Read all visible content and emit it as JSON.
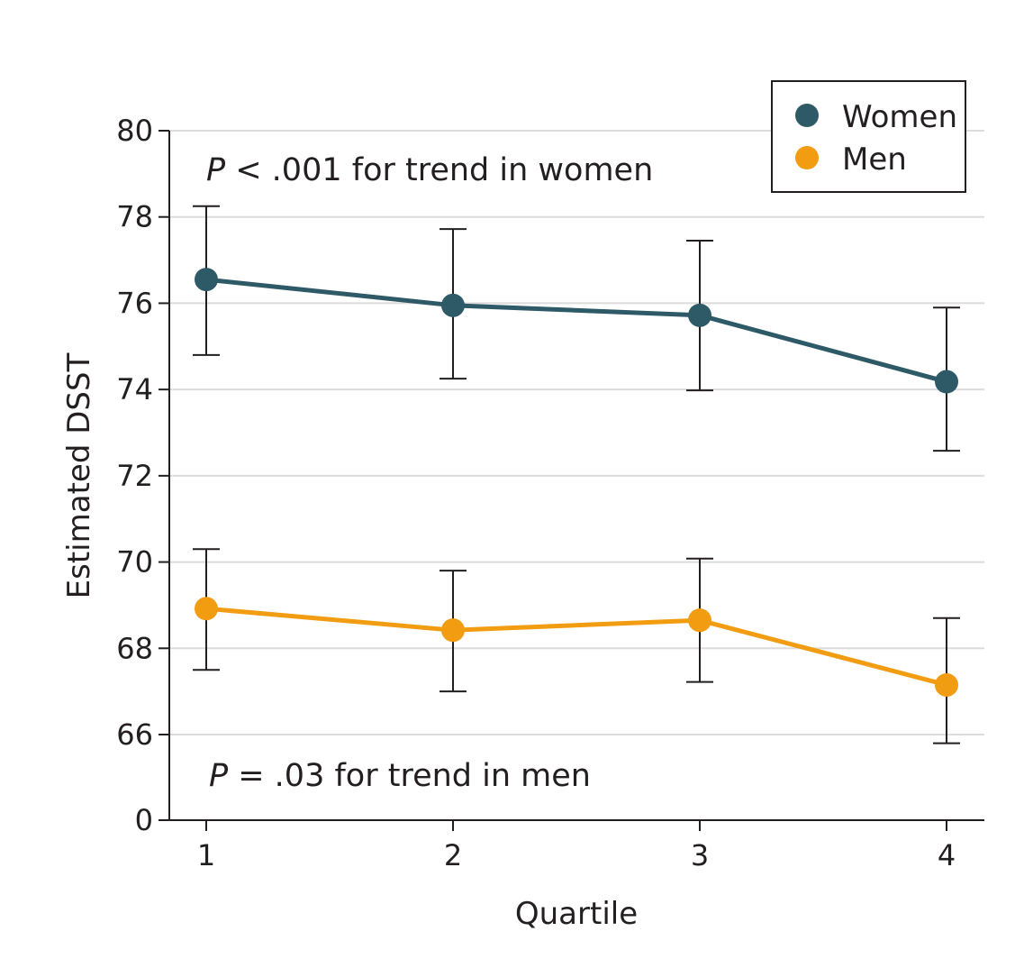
{
  "chart_data": {
    "type": "line",
    "xlabel": "Quartile",
    "ylabel": "Estimated DSST",
    "categories": [
      "1",
      "2",
      "3",
      "4"
    ],
    "x": [
      1,
      2,
      3,
      4
    ],
    "xlim": [
      0.85,
      4.15
    ],
    "y_ticks": [
      0,
      66,
      68,
      70,
      72,
      74,
      76,
      78,
      80
    ],
    "y_axis_break": "0 to 65",
    "grid": "horizontal",
    "legend_position": "top-right",
    "series": [
      {
        "name": "Women",
        "color": "#2e5a67",
        "values": [
          76.55,
          75.95,
          75.72,
          74.18
        ],
        "ci_low": [
          74.8,
          74.25,
          73.98,
          72.58
        ],
        "ci_high": [
          78.25,
          77.72,
          77.45,
          75.9
        ]
      },
      {
        "name": "Men",
        "color": "#f29c12",
        "values": [
          68.92,
          68.42,
          68.65,
          67.15
        ],
        "ci_low": [
          67.5,
          67.0,
          67.22,
          65.8
        ],
        "ci_high": [
          70.3,
          69.8,
          70.08,
          68.7
        ]
      }
    ],
    "annotations": [
      {
        "italic": "P",
        "text": " < .001 for trend in women"
      },
      {
        "italic": "P",
        "text": " = .03 for trend in men"
      }
    ]
  }
}
